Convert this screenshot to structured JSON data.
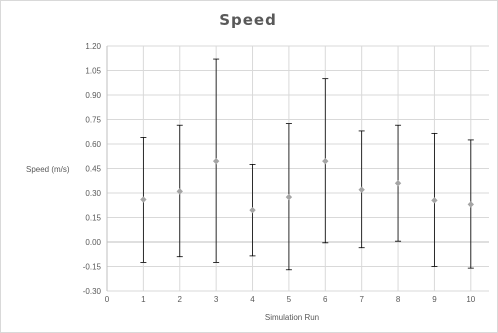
{
  "chart_data": {
    "type": "scatter",
    "title": "Speed",
    "xlabel": "Simulation Run",
    "ylabel": "Speed (m/s)",
    "xlim": [
      0,
      10.5
    ],
    "ylim": [
      -0.3,
      1.2
    ],
    "x_ticks": [
      "0",
      "1",
      "2",
      "3",
      "4",
      "5",
      "6",
      "7",
      "8",
      "9",
      "10"
    ],
    "y_ticks": [
      "-0.30",
      "-0.15",
      "0.00",
      "0.15",
      "0.30",
      "0.45",
      "0.60",
      "0.75",
      "0.90",
      "1.05",
      "1.20"
    ],
    "grid": true,
    "marker_color": "#a5a5a5",
    "errorbar_color": "#000000",
    "series": [
      {
        "points": [
          {
            "x": 1,
            "y": 0.26,
            "lower": -0.125,
            "upper": 0.64
          },
          {
            "x": 2,
            "y": 0.31,
            "lower": -0.09,
            "upper": 0.715
          },
          {
            "x": 3,
            "y": 0.495,
            "lower": -0.125,
            "upper": 1.12
          },
          {
            "x": 4,
            "y": 0.195,
            "lower": -0.085,
            "upper": 0.475
          },
          {
            "x": 5,
            "y": 0.275,
            "lower": -0.17,
            "upper": 0.725
          },
          {
            "x": 6,
            "y": 0.495,
            "lower": -0.005,
            "upper": 1.0
          },
          {
            "x": 7,
            "y": 0.32,
            "lower": -0.035,
            "upper": 0.68
          },
          {
            "x": 8,
            "y": 0.36,
            "lower": 0.005,
            "upper": 0.715
          },
          {
            "x": 9,
            "y": 0.255,
            "lower": -0.15,
            "upper": 0.665
          },
          {
            "x": 10,
            "y": 0.23,
            "lower": -0.16,
            "upper": 0.625
          }
        ]
      }
    ]
  }
}
